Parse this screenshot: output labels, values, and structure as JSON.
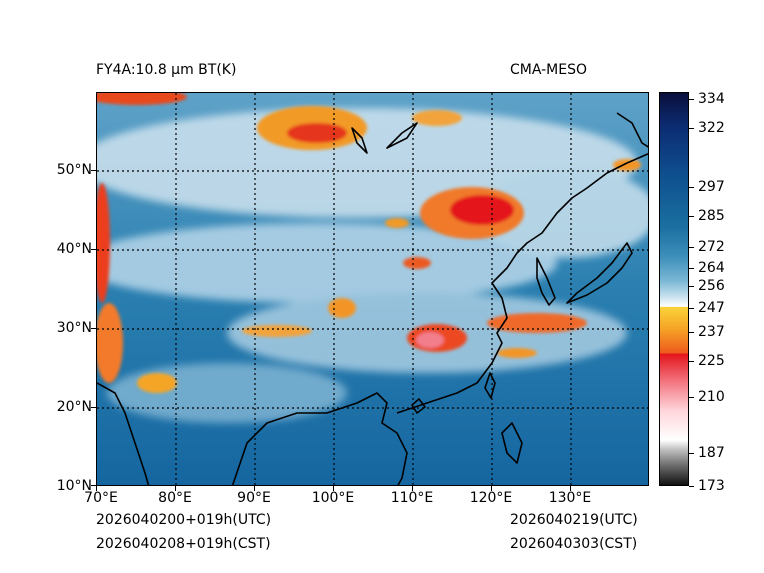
{
  "header": {
    "title_left": "FY4A:10.8 μm BT(K)",
    "title_right": "CMA-MESO"
  },
  "footer": {
    "init_utc": "2026040200+019h(UTC)",
    "init_cst": "2026040208+019h(CST)",
    "valid_utc": "2026040219(UTC)",
    "valid_cst": "2026040303(CST)"
  },
  "axes": {
    "lat_labels": [
      "50°N",
      "40°N",
      "30°N",
      "20°N",
      "10°N"
    ],
    "lon_labels": [
      "70°E",
      "80°E",
      "90°E",
      "100°E",
      "110°E",
      "120°E",
      "130°E"
    ]
  },
  "colorbar": {
    "labels": [
      "334",
      "322",
      "297",
      "285",
      "272",
      "264",
      "256",
      "247",
      "237",
      "225",
      "210",
      "187",
      "173"
    ],
    "colors": {
      "cold": "#0a0f3a",
      "mid": "#3f90bb",
      "warm_cloud": "#f5a526",
      "deep": "#e4131b",
      "floor": "#111111"
    }
  },
  "map": {
    "extent_lon": [
      70,
      140
    ],
    "extent_lat": [
      10,
      60
    ],
    "ocean_color": "#1f6fa3",
    "cloud_color": "#cfe3ef"
  }
}
